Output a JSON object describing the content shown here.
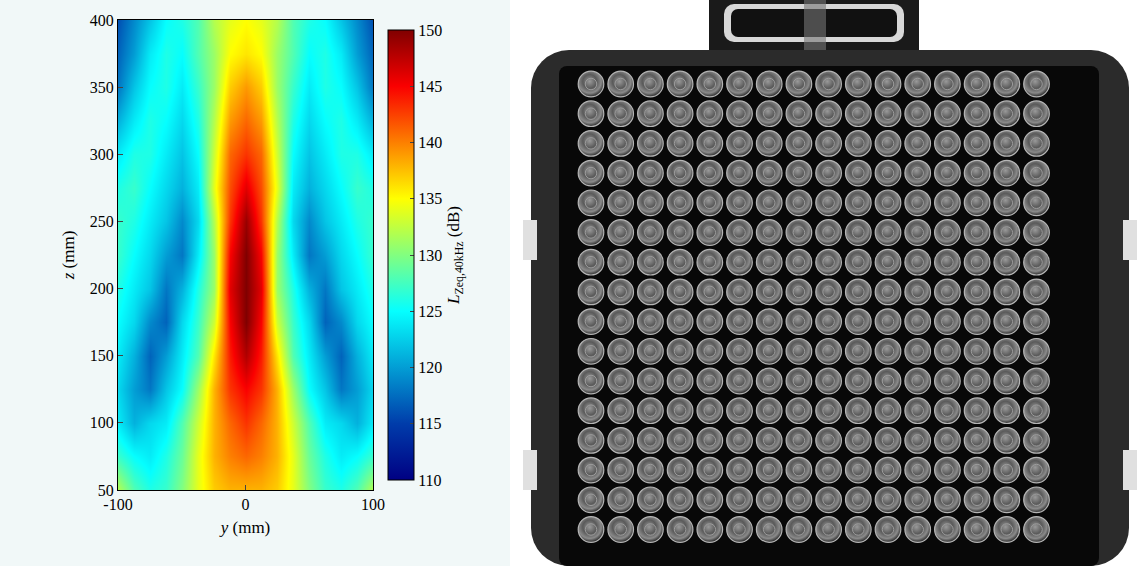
{
  "chart_data": {
    "type": "heatmap",
    "x": [
      -100,
      -87.5,
      -75,
      -62.5,
      -50,
      -37.5,
      -25,
      -12.5,
      0,
      12.5,
      25,
      37.5,
      50,
      62.5,
      75,
      87.5,
      100
    ],
    "y": [
      50,
      75,
      100,
      125,
      150,
      175,
      200,
      225,
      250,
      275,
      300,
      325,
      350,
      375,
      400
    ],
    "z": [
      [
        132,
        128,
        126,
        127,
        130,
        134,
        137,
        138,
        138,
        138,
        137,
        134,
        130,
        127,
        126,
        128,
        132
      ],
      [
        127,
        125,
        124,
        126,
        129,
        134,
        138,
        140,
        141,
        140,
        138,
        134,
        129,
        126,
        124,
        125,
        127
      ],
      [
        124,
        121,
        123,
        124,
        128,
        133,
        138,
        141,
        143,
        141,
        138,
        133,
        128,
        124,
        123,
        121,
        124
      ],
      [
        123,
        120,
        118,
        122,
        125,
        131,
        138,
        143,
        145,
        143,
        138,
        131,
        125,
        122,
        118,
        120,
        123
      ],
      [
        124,
        121,
        117,
        120,
        124,
        128,
        136,
        144,
        148,
        144,
        136,
        128,
        124,
        120,
        117,
        121,
        124
      ],
      [
        125,
        123,
        119,
        117,
        123,
        127,
        133,
        145,
        150,
        145,
        133,
        127,
        123,
        117,
        119,
        123,
        125
      ],
      [
        126,
        124,
        122,
        118,
        121,
        126,
        131,
        146,
        150,
        146,
        131,
        126,
        121,
        118,
        122,
        124,
        126
      ],
      [
        127,
        125,
        123,
        120,
        118,
        124,
        131,
        145,
        150,
        145,
        131,
        124,
        118,
        120,
        123,
        125,
        127
      ],
      [
        127,
        126,
        124,
        122,
        119,
        123,
        132,
        143,
        149,
        143,
        132,
        123,
        119,
        122,
        124,
        126,
        127
      ],
      [
        126,
        127,
        125,
        123,
        121,
        124,
        134,
        142,
        146,
        142,
        134,
        124,
        121,
        123,
        125,
        127,
        126
      ],
      [
        124,
        126,
        126,
        124,
        122,
        125,
        133,
        141,
        143,
        141,
        133,
        125,
        122,
        124,
        126,
        126,
        124
      ],
      [
        121,
        124,
        126,
        125,
        123,
        126,
        132,
        139,
        141,
        139,
        132,
        126,
        123,
        125,
        126,
        124,
        121
      ],
      [
        118,
        122,
        125,
        126,
        124,
        127,
        131,
        137,
        139,
        137,
        131,
        127,
        124,
        126,
        125,
        122,
        118
      ],
      [
        117,
        120,
        124,
        126,
        125,
        128,
        131,
        135,
        136,
        135,
        131,
        128,
        125,
        126,
        124,
        120,
        117
      ],
      [
        116,
        119,
        122,
        125,
        126,
        128,
        132,
        134,
        135,
        134,
        132,
        128,
        126,
        125,
        122,
        119,
        116
      ]
    ],
    "xlim": [
      -100,
      100
    ],
    "xticks": [
      -100,
      0,
      100
    ],
    "ylim": [
      50,
      400
    ],
    "yticks": [
      50,
      100,
      150,
      200,
      250,
      300,
      350,
      400
    ],
    "xlabel": {
      "symbol": "y",
      "unit": "(mm)"
    },
    "ylabel": {
      "symbol": "z",
      "unit": "(mm)"
    },
    "color": "Jet",
    "colorbar": {
      "range": [
        110,
        150
      ],
      "ticks": [
        110,
        115,
        120,
        125,
        130,
        135,
        140,
        145,
        150
      ],
      "title": {
        "symbol": "L",
        "subscript": "Zeq,40kHz",
        "unit": "(dB)"
      }
    }
  },
  "photo": {
    "transducer_array": {
      "rows": 16,
      "columns": 16
    }
  }
}
